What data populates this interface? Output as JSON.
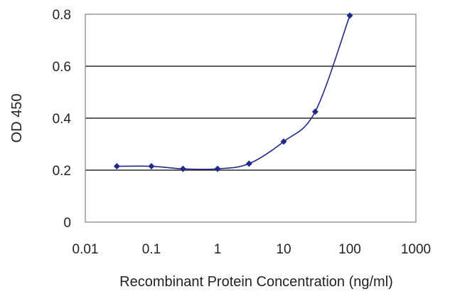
{
  "chart_data": {
    "type": "line",
    "title": "",
    "xlabel": "Recombinant Protein Concentration (ng/ml)",
    "ylabel": "OD 450",
    "x_scale": "log",
    "xlim": [
      0.01,
      1000
    ],
    "ylim": [
      0,
      0.8
    ],
    "x_ticks": [
      0.01,
      0.1,
      1,
      10,
      100,
      1000
    ],
    "x_tick_labels": [
      "0.01",
      "0.1",
      "1",
      "10",
      "100",
      "1000"
    ],
    "y_ticks": [
      0,
      0.2,
      0.4,
      0.6,
      0.8
    ],
    "y_tick_labels": [
      "0",
      "0.2",
      "0.4",
      "0.6",
      "0.8"
    ],
    "grid": "horizontal",
    "legend": "none",
    "series": [
      {
        "color": "#1f2a8c",
        "x": [
          0.03,
          0.1,
          0.3,
          1,
          3,
          10,
          30,
          100
        ],
        "y": [
          0.215,
          0.215,
          0.205,
          0.205,
          0.225,
          0.31,
          0.425,
          0.795
        ]
      }
    ]
  }
}
